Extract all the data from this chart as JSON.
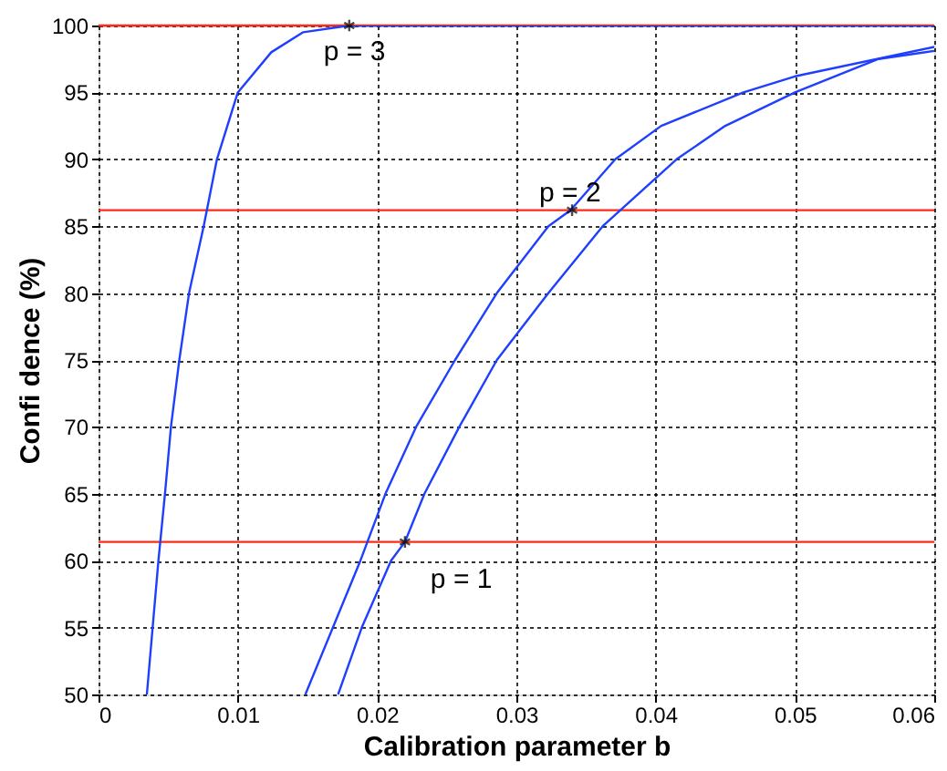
{
  "chart_data": {
    "type": "line",
    "xlabel": "Calibration parameter b",
    "ylabel": "Confi dence (%)",
    "xlim": [
      0,
      0.06
    ],
    "ylim": [
      50,
      100
    ],
    "xticks": [
      0,
      0.01,
      0.02,
      0.03,
      0.04,
      0.05,
      0.06
    ],
    "yticks": [
      50,
      55,
      60,
      65,
      70,
      75,
      80,
      85,
      90,
      95,
      100
    ],
    "grid": true,
    "marker": "none",
    "line_style": "solid",
    "series": [
      {
        "color": "#1f3fff",
        "x": [
          0.00347,
          0.0043,
          0.00477,
          0.0052,
          0.0058,
          0.0065,
          0.00755,
          0.0085,
          0.01,
          0.0124,
          0.0147,
          0.018,
          0.06
        ],
        "values": [
          50,
          60,
          65,
          70,
          75,
          80,
          85,
          90,
          95,
          98,
          99.5,
          100,
          100
        ]
      },
      {
        "color": "#1f3fff",
        "x": [
          0.01485,
          0.0188,
          0.0206,
          0.0228,
          0.0256,
          0.0286,
          0.0323,
          0.0339,
          0.0371,
          0.0404,
          0.0463,
          0.05,
          0.06
        ],
        "values": [
          50,
          60,
          65,
          70,
          75,
          80,
          85,
          86.2,
          90,
          92.5,
          95,
          96.2,
          98.4
        ]
      },
      {
        "color": "#1f3fff",
        "x": [
          0.0172,
          0.0189,
          0.021,
          0.022,
          0.0234,
          0.0259,
          0.0286,
          0.0323,
          0.0362,
          0.0415,
          0.045,
          0.05,
          0.056,
          0.06
        ],
        "values": [
          50,
          55,
          60,
          61.4,
          65,
          70,
          75,
          80,
          85,
          90,
          92.5,
          95,
          97.5,
          98.1
        ]
      },
      {
        "type": "scatter",
        "marker": "cross",
        "color": "#000000",
        "x": [
          0.022,
          0.034,
          0.018
        ],
        "values": [
          61.4,
          86.2,
          100
        ]
      }
    ],
    "ref_lines": [
      {
        "axis": "y",
        "value": 61.4,
        "color": "#ff2a1a"
      },
      {
        "axis": "y",
        "value": 86.2,
        "color": "#ff2a1a"
      },
      {
        "axis": "y",
        "value": 100,
        "color": "#ff2a1a"
      }
    ],
    "annotations": [
      {
        "text": "p = 1",
        "x": 0.022,
        "y": 61.4
      },
      {
        "text": "p = 2",
        "x": 0.034,
        "y": 86.2
      },
      {
        "text": "p = 3",
        "x": 0.018,
        "y": 100
      }
    ]
  }
}
